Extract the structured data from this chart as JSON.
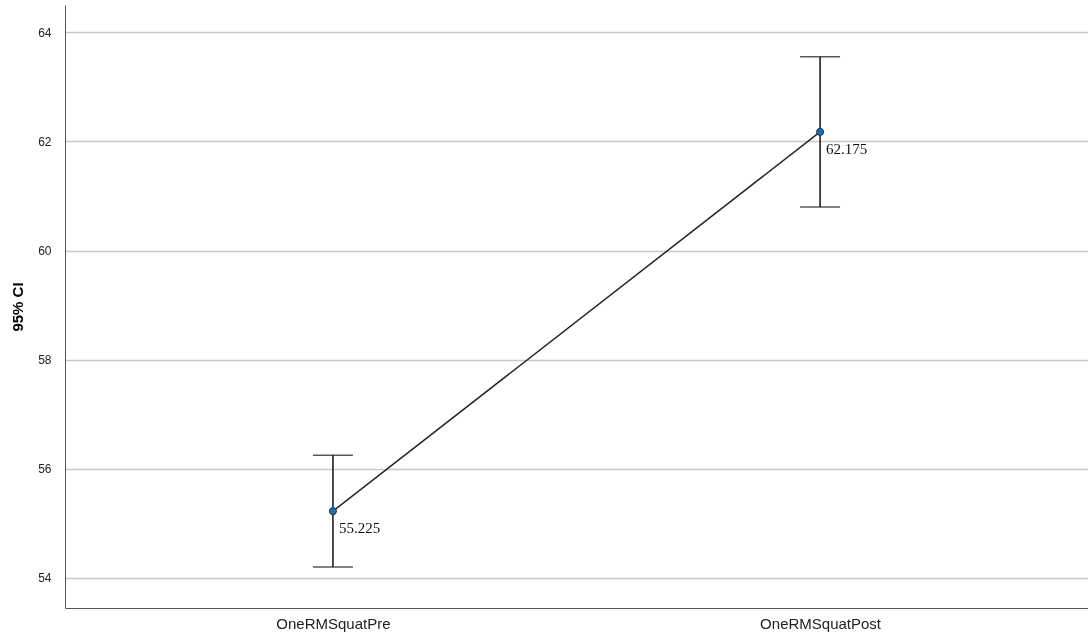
{
  "chart_data": {
    "type": "line",
    "ylabel": "95% CI",
    "categories": [
      "OneRMSquatPre",
      "OneRMSquatPost"
    ],
    "series": [
      {
        "color": "#1f6fb4",
        "values": [
          55.225,
          62.175
        ],
        "errors": [
          [
            54.2,
            56.25
          ],
          [
            60.8,
            63.55
          ]
        ]
      }
    ],
    "ylim": [
      53.45,
      64.5
    ],
    "yticks": [
      54,
      56,
      58,
      60,
      62,
      64
    ],
    "grid": "y",
    "marker": "circle",
    "line_style": "solid",
    "data_labels": true
  }
}
